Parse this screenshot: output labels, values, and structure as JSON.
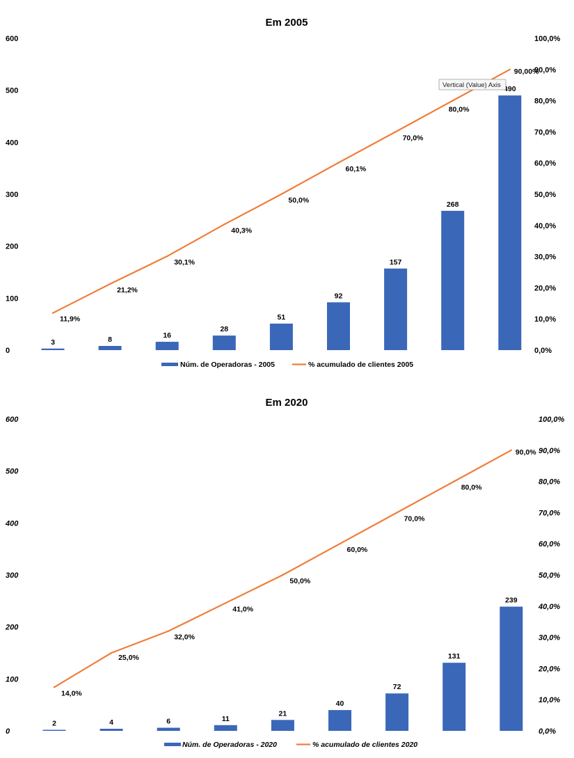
{
  "colors": {
    "bar": "#3a67b8",
    "line": "#ef7d3a"
  },
  "tooltip": {
    "text": "Vertical (Value) Axis"
  },
  "chart_data": [
    {
      "type": "bar+line",
      "title": "Em 2005",
      "y_left": {
        "range": [
          0,
          600
        ],
        "ticks": [
          "0",
          "100",
          "200",
          "300",
          "400",
          "500",
          "600"
        ]
      },
      "y_right": {
        "range": [
          0,
          100
        ],
        "ticks": [
          "0,0%",
          "10,0%",
          "20,0%",
          "30,0%",
          "40,0%",
          "50,0%",
          "60,0%",
          "70,0%",
          "80,0%",
          "90,0%",
          "100,0%"
        ]
      },
      "series": [
        {
          "name": "Núm. de Operadoras - 2005",
          "type": "bar",
          "axis": "left",
          "values": [
            3,
            8,
            16,
            28,
            51,
            92,
            157,
            268,
            490
          ],
          "labels": [
            "3",
            "8",
            "16",
            "28",
            "51",
            "92",
            "157",
            "268",
            "490"
          ]
        },
        {
          "name": "% acumulado de clientes 2005",
          "type": "line",
          "axis": "right",
          "values": [
            11.9,
            21.2,
            30.1,
            40.3,
            50.0,
            60.1,
            70.0,
            80.0,
            90.0
          ],
          "labels": [
            "11,9%",
            "21,2%",
            "30,1%",
            "40,3%",
            "50,0%",
            "60,1%",
            "70,0%",
            "80,0%",
            "90,00%"
          ]
        }
      ]
    },
    {
      "type": "bar+line",
      "title": "Em 2020",
      "y_left": {
        "range": [
          0,
          600
        ],
        "ticks": [
          "0",
          "100",
          "200",
          "300",
          "400",
          "500",
          "600"
        ]
      },
      "y_right": {
        "range": [
          0,
          100
        ],
        "ticks": [
          "0,0%",
          "10,0%",
          "20,0%",
          "30,0%",
          "40,0%",
          "50,0%",
          "60,0%",
          "70,0%",
          "80,0%",
          "90,0%",
          "100,0%"
        ]
      },
      "series": [
        {
          "name": "Núm. de Operadoras - 2020",
          "type": "bar",
          "axis": "left",
          "values": [
            2,
            4,
            6,
            11,
            21,
            40,
            72,
            131,
            239
          ],
          "labels": [
            "2",
            "4",
            "6",
            "11",
            "21",
            "40",
            "72",
            "131",
            "239"
          ]
        },
        {
          "name": "% acumulado de clientes 2020",
          "type": "line",
          "axis": "right",
          "values": [
            14.0,
            25.0,
            32.0,
            41.0,
            50.0,
            60.0,
            70.0,
            80.0,
            90.0
          ],
          "labels": [
            "14,0%",
            "25,0%",
            "32,0%",
            "41,0%",
            "50,0%",
            "60,0%",
            "70,0%",
            "80,0%",
            "90,0%"
          ]
        }
      ]
    }
  ]
}
